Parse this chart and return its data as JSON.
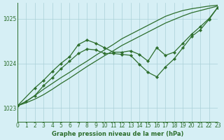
{
  "title": "Graphe pression niveau de la mer (hPa)",
  "bg_color": "#d6eff5",
  "grid_color": "#aad0d8",
  "line_color": "#2d6e2d",
  "xlim": [
    0,
    23
  ],
  "ylim": [
    1022.7,
    1025.35
  ],
  "yticks": [
    1023,
    1024,
    1025
  ],
  "xticks": [
    0,
    1,
    2,
    3,
    4,
    5,
    6,
    7,
    8,
    9,
    10,
    11,
    12,
    13,
    14,
    15,
    16,
    17,
    18,
    19,
    20,
    21,
    22,
    23
  ],
  "series": [
    {
      "x": [
        0,
        1,
        2,
        3,
        4,
        5,
        6,
        7,
        8,
        9,
        10,
        11,
        12,
        13,
        14,
        15,
        16,
        17,
        18,
        19,
        20,
        21,
        22,
        23
      ],
      "y": [
        1023.05,
        1023.15,
        1023.28,
        1023.42,
        1023.55,
        1023.68,
        1023.8,
        1023.93,
        1024.05,
        1024.18,
        1024.3,
        1024.42,
        1024.55,
        1024.65,
        1024.75,
        1024.85,
        1024.95,
        1025.05,
        1025.12,
        1025.18,
        1025.22,
        1025.25,
        1025.28,
        1025.3
      ],
      "markers": false
    },
    {
      "x": [
        0,
        1,
        2,
        3,
        4,
        5,
        6,
        7,
        8,
        9,
        10,
        11,
        12,
        13,
        14,
        15,
        16,
        17,
        18,
        19,
        20,
        21,
        22,
        23
      ],
      "y": [
        1023.05,
        1023.12,
        1023.2,
        1023.3,
        1023.42,
        1023.55,
        1023.67,
        1023.8,
        1023.93,
        1024.05,
        1024.17,
        1024.28,
        1024.4,
        1024.5,
        1024.6,
        1024.7,
        1024.8,
        1024.9,
        1024.98,
        1025.06,
        1025.13,
        1025.18,
        1025.23,
        1025.28
      ],
      "markers": false
    },
    {
      "x": [
        0,
        2,
        3,
        4,
        5,
        6,
        7,
        8,
        9,
        10,
        11,
        12,
        13,
        14,
        15,
        16,
        17,
        18,
        19,
        20,
        21,
        22,
        23
      ],
      "y": [
        1023.05,
        1023.45,
        1023.62,
        1023.82,
        1024.0,
        1024.15,
        1024.42,
        1024.52,
        1024.45,
        1024.35,
        1024.25,
        1024.25,
        1024.28,
        1024.2,
        1024.05,
        1024.35,
        1024.18,
        1024.25,
        1024.45,
        1024.65,
        1024.82,
        1025.0,
        1025.25
      ],
      "markers": true
    },
    {
      "x": [
        0,
        1,
        2,
        3,
        4,
        5,
        6,
        7,
        8,
        9,
        10,
        11,
        12,
        13,
        14,
        15,
        16,
        17,
        18,
        19,
        20,
        21,
        22,
        23
      ],
      "y": [
        1023.05,
        1023.15,
        1023.28,
        1023.5,
        1023.68,
        1023.88,
        1024.05,
        1024.22,
        1024.32,
        1024.3,
        1024.22,
        1024.22,
        1024.2,
        1024.18,
        1023.98,
        1023.8,
        1023.7,
        1023.92,
        1024.1,
        1024.35,
        1024.6,
        1024.75,
        1024.98,
        1025.25
      ],
      "markers": true
    }
  ]
}
